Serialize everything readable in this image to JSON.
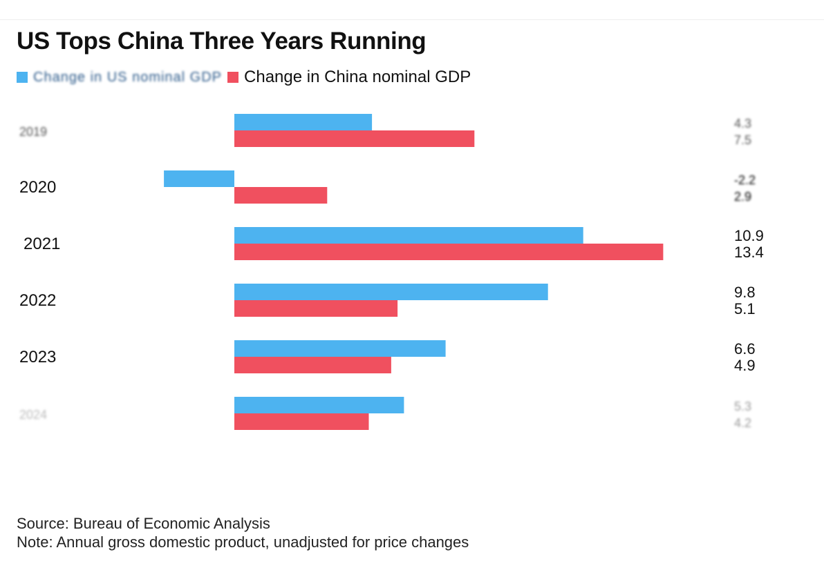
{
  "title": "US Tops China Three Years Running",
  "legend": {
    "us_label": "Change in US nominal GDP",
    "china_label": "Change in China nominal GDP"
  },
  "colors": {
    "us": "#4db3f0",
    "china": "#f0505f",
    "text": "#111111"
  },
  "chart_data": {
    "type": "bar",
    "orientation": "horizontal",
    "title": "US Tops China Three Years Running",
    "categories": [
      "2019",
      "2020",
      "2021",
      "2022",
      "2023",
      "2024"
    ],
    "series": [
      {
        "name": "Change in US nominal GDP",
        "values": [
          4.3,
          -2.2,
          10.9,
          9.8,
          6.6,
          5.3
        ]
      },
      {
        "name": "Change in China nominal GDP",
        "values": [
          7.5,
          2.9,
          13.4,
          5.1,
          4.9,
          4.2
        ]
      }
    ],
    "value_labels": [
      [
        "4.3",
        "7.5"
      ],
      [
        "-2.2",
        "2.9"
      ],
      [
        "10.9",
        "13.4"
      ],
      [
        "9.8",
        "5.1"
      ],
      [
        "6.6",
        "4.9"
      ],
      [
        "5.3",
        "4.2"
      ]
    ],
    "blurred_rows": [
      0,
      5
    ],
    "xlim": [
      -2.2,
      13.4
    ],
    "grid": false,
    "legend_position": "top-left"
  },
  "footer": {
    "source": "Source: Bureau of Economic Analysis",
    "note": "Note: Annual gross domestic product, unadjusted for price changes"
  }
}
